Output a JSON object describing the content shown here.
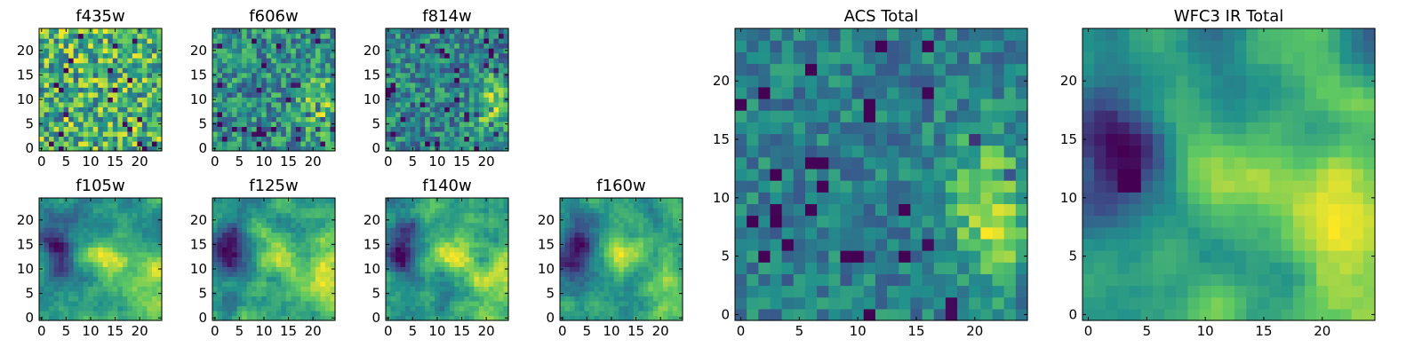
{
  "figure": {
    "colormap": "viridis",
    "background": "#ffffff",
    "colormap_stops": [
      "#440154",
      "#3b528b",
      "#21918c",
      "#5ec962",
      "#fde725"
    ]
  },
  "chart_data": [
    {
      "type": "heatmap",
      "title": "f435w",
      "grid_size": 25,
      "xlim": [
        -0.5,
        24.5
      ],
      "ylim": [
        -0.5,
        24.5
      ],
      "xticks": [
        0,
        5,
        10,
        15,
        20
      ],
      "yticks": [
        0,
        5,
        10,
        15,
        20
      ],
      "texture": "uniform noise",
      "bright_region": null
    },
    {
      "type": "heatmap",
      "title": "f606w",
      "grid_size": 25,
      "xlim": [
        -0.5,
        24.5
      ],
      "ylim": [
        -0.5,
        24.5
      ],
      "xticks": [
        0,
        5,
        10,
        15,
        20
      ],
      "yticks": [
        0,
        5,
        10,
        15,
        20
      ],
      "texture": "noise with faint bright blob",
      "bright_region": "lower-right"
    },
    {
      "type": "heatmap",
      "title": "f814w",
      "grid_size": 25,
      "xlim": [
        -0.5,
        24.5
      ],
      "ylim": [
        -0.5,
        24.5
      ],
      "xticks": [
        0,
        5,
        10,
        15,
        20
      ],
      "yticks": [
        0,
        5,
        10,
        15,
        20
      ],
      "texture": "noise with faint bright blob",
      "bright_region": "lower-right"
    },
    {
      "type": "heatmap",
      "title": "f105w",
      "grid_size": 25,
      "xlim": [
        -0.5,
        24.5
      ],
      "ylim": [
        -0.5,
        24.5
      ],
      "xticks": [
        0,
        5,
        10,
        15,
        20
      ],
      "yticks": [
        0,
        5,
        10,
        15,
        20
      ],
      "texture": "smooth",
      "bright_region": "center and lower-right"
    },
    {
      "type": "heatmap",
      "title": "f125w",
      "grid_size": 25,
      "xlim": [
        -0.5,
        24.5
      ],
      "ylim": [
        -0.5,
        24.5
      ],
      "xticks": [
        0,
        5,
        10,
        15,
        20
      ],
      "yticks": [
        0,
        5,
        10,
        15,
        20
      ],
      "texture": "smooth",
      "bright_region": "center and lower-right"
    },
    {
      "type": "heatmap",
      "title": "f140w",
      "grid_size": 25,
      "xlim": [
        -0.5,
        24.5
      ],
      "ylim": [
        -0.5,
        24.5
      ],
      "xticks": [
        0,
        5,
        10,
        15,
        20
      ],
      "yticks": [
        0,
        5,
        10,
        15,
        20
      ],
      "texture": "smooth",
      "bright_region": "center and lower-right"
    },
    {
      "type": "heatmap",
      "title": "f160w",
      "grid_size": 25,
      "xlim": [
        -0.5,
        24.5
      ],
      "ylim": [
        -0.5,
        24.5
      ],
      "xticks": [
        0,
        5,
        10,
        15,
        20
      ],
      "yticks": [
        0,
        5,
        10,
        15,
        20
      ],
      "texture": "smooth",
      "bright_region": "center and lower-right"
    },
    {
      "type": "heatmap",
      "title": "ACS Total",
      "grid_size": 25,
      "xlim": [
        -0.5,
        24.5
      ],
      "ylim": [
        -0.5,
        24.5
      ],
      "xticks": [
        0,
        5,
        10,
        15,
        20
      ],
      "yticks": [
        0,
        5,
        10,
        15,
        20
      ],
      "texture": "blocky noise",
      "bright_region": "right"
    },
    {
      "type": "heatmap",
      "title": "WFC3 IR Total",
      "grid_size": 25,
      "xlim": [
        -0.5,
        24.5
      ],
      "ylim": [
        -0.5,
        24.5
      ],
      "xticks": [
        0,
        5,
        10,
        15,
        20
      ],
      "yticks": [
        0,
        5,
        10,
        15,
        20
      ],
      "texture": "smooth",
      "bright_region": "center and lower-right"
    }
  ]
}
